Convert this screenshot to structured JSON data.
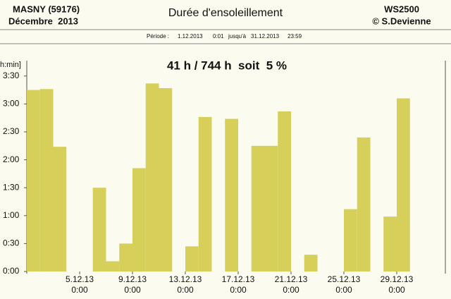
{
  "chart_data": {
    "type": "bar",
    "header_left": [
      "MASNY (59176)",
      "Décembre  2013"
    ],
    "title": "Durée d'ensoleillement",
    "header_right": [
      "WS2500",
      "© S.Devienne"
    ],
    "period": [
      "Période :",
      "1.12.2013",
      "0:01",
      "jusqu'à",
      "31.12.2013",
      "23:59"
    ],
    "subtitle": "41 h / 744 h  soit  5 %",
    "y_label": "h:min]",
    "color": "#d6cf5a",
    "categories": [
      null,
      null,
      null,
      null,
      [
        "5.12.13",
        "0:00"
      ],
      null,
      null,
      null,
      [
        "9.12.13",
        "0:00"
      ],
      null,
      null,
      null,
      [
        "13.12.13",
        "0:00"
      ],
      null,
      null,
      null,
      [
        "17.12.13",
        "0:00"
      ],
      null,
      null,
      null,
      [
        "21.12.13",
        "0:00"
      ],
      null,
      null,
      null,
      [
        "25.12.13",
        "0:00"
      ],
      null,
      null,
      null,
      [
        "29.12.13",
        "0:00"
      ],
      null,
      null
    ],
    "values": [
      195,
      196,
      134,
      0,
      0,
      90,
      11,
      30,
      111,
      202,
      197,
      0,
      27,
      166,
      0,
      164,
      0,
      135,
      135,
      172,
      0,
      18,
      0,
      0,
      67,
      144,
      0,
      59,
      186,
      0,
      0
    ],
    "ylim": [
      0,
      225
    ],
    "yticks": [
      {
        "value": 0,
        "label": "0:00"
      },
      {
        "value": 30,
        "label": "0:30"
      },
      {
        "value": 60,
        "label": "1:00"
      },
      {
        "value": 90,
        "label": "1:30"
      },
      {
        "value": 120,
        "label": "2:00"
      },
      {
        "value": 150,
        "label": "2:30"
      },
      {
        "value": 180,
        "label": "3:00"
      },
      {
        "value": 210,
        "label": "3:30"
      }
    ]
  }
}
